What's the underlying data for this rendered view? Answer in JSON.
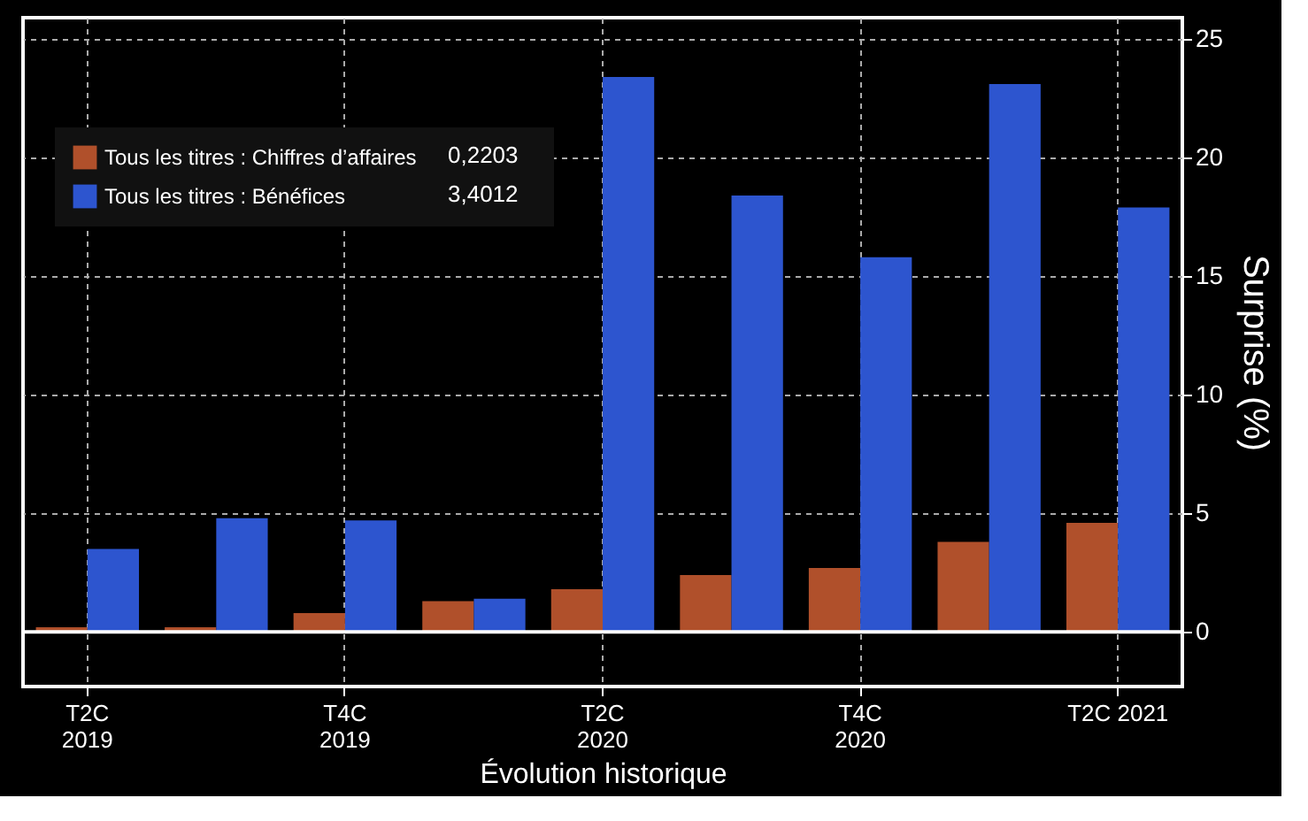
{
  "chart_data": {
    "type": "bar",
    "xlabel": "Évolution historique",
    "ylabel": "Surprise (%)",
    "categories": [
      "T2C\n2019",
      null,
      "T4C\n2019",
      null,
      "T2C\n2020",
      null,
      "T4C\n2020",
      null,
      "T2C 2021"
    ],
    "series": [
      {
        "name": "Tous les titres : Chiffres d’affaires",
        "color": "#b0502b",
        "values": [
          0.2,
          0.2,
          0.8,
          1.3,
          1.8,
          2.4,
          2.7,
          3.8,
          4.6
        ]
      },
      {
        "name": "Tous les titres : Bénéfices",
        "color": "#2d55cf",
        "values": [
          3.5,
          4.8,
          4.7,
          1.4,
          23.4,
          18.4,
          15.8,
          23.1,
          17.9
        ]
      }
    ],
    "annotations": [
      "0,2203",
      "3,4012"
    ],
    "ylim": [
      -2.3,
      25.9
    ],
    "yticks": [
      0,
      5,
      10,
      15,
      20,
      25
    ],
    "ref_lines": [
      {
        "axis": "y",
        "value": 0,
        "color": "#ffffff"
      }
    ],
    "grid": true,
    "legend": "top left"
  }
}
